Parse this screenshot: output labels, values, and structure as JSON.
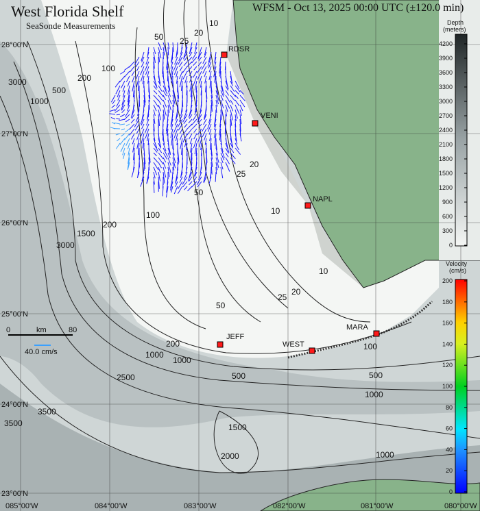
{
  "title": "West Florida Shelf",
  "subtitle": "SeaSonde Measurements",
  "run_title": "WFSM - Oct 13, 2025 00:00 UTC (±120.0 min)",
  "colors": {
    "land": "#88b38a",
    "shelf": "#f4f6f4",
    "deep": "#9ea7a8",
    "vector": "#1a1aff",
    "station": "#ff1a1a"
  },
  "stations": [
    {
      "name": "RDSR"
    },
    {
      "name": "VENI"
    },
    {
      "name": "NAPL"
    },
    {
      "name": "JEFF"
    },
    {
      "name": "WEST"
    },
    {
      "name": "MARA"
    }
  ],
  "lat_labels": [
    "28°00'N",
    "27°00'N",
    "26°00'N",
    "25°00'N",
    "24°00'N",
    "23°00'N"
  ],
  "lon_labels": [
    "085°00'W",
    "084°00'W",
    "083°00'W",
    "082°00'W",
    "081°00'W",
    "080°00'W"
  ],
  "contour_labels": [
    "10",
    "20",
    "25",
    "50",
    "100",
    "200",
    "500",
    "1000",
    "3000",
    "10",
    "20",
    "25",
    "50",
    "100",
    "200",
    "1000",
    "1500",
    "3000",
    "25",
    "20",
    "10",
    "50",
    "200",
    "1000",
    "500",
    "100",
    "500",
    "1000",
    "2000",
    "1500",
    "1000",
    "2500",
    "3500",
    "3500"
  ],
  "scale": {
    "km_zero": "0",
    "km_label": "km",
    "km_max": "80",
    "vector_label": "40.0 cm/s"
  },
  "depth_colorbar": {
    "title": "Depth",
    "units": "(meters)",
    "ticks": [
      "4200",
      "3900",
      "3600",
      "3300",
      "3000",
      "2700",
      "2400",
      "2100",
      "1800",
      "1500",
      "1200",
      "900",
      "600",
      "300",
      "0"
    ]
  },
  "velocity_colorbar": {
    "title": "Velocity",
    "units": "(cm/s)",
    "ticks": [
      "200",
      "180",
      "160",
      "140",
      "120",
      "100",
      "80",
      "60",
      "40",
      "20",
      "0"
    ]
  }
}
